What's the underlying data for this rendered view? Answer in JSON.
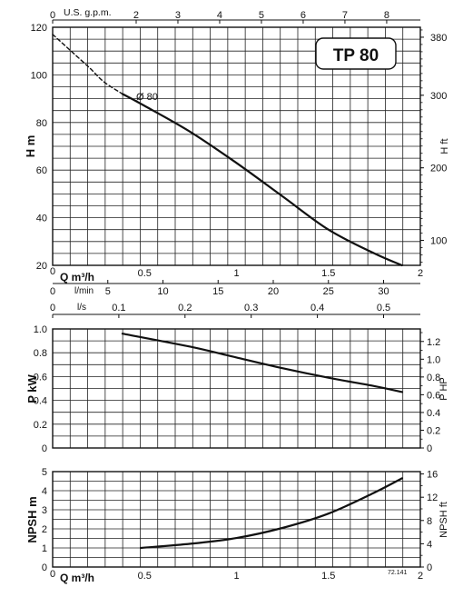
{
  "badge": {
    "text": "TP 80"
  },
  "chart_data": [
    {
      "id": "head",
      "type": "line",
      "title": "",
      "xlabel": "Q m³/h",
      "ylabel": "H m",
      "y2label": "H ft",
      "xlim": [
        0,
        2
      ],
      "ylim": [
        20,
        120
      ],
      "grid": true,
      "x_ticks": [
        "0",
        "0.5",
        "1",
        "1.5",
        "2"
      ],
      "y_ticks": [
        "20",
        "40",
        "60",
        "80",
        "100",
        "120"
      ],
      "y2_ticks": [
        "100",
        "200",
        "300",
        "380"
      ],
      "top_axis": {
        "label": "U.S. g.p.m.",
        "ticks": [
          "0",
          "2",
          "3",
          "4",
          "5",
          "6",
          "7",
          "8"
        ]
      },
      "lpm_axis": {
        "label": "l/min",
        "ticks": [
          "5",
          "10",
          "15",
          "20",
          "25",
          "30"
        ]
      },
      "ls_axis": {
        "label": "l/s",
        "ticks": [
          "0",
          "0.1",
          "0.2",
          "0.3",
          "0.4",
          "0.5"
        ]
      },
      "annotation": "Ø 80",
      "series": [
        {
          "dashed": true,
          "x": [
            0.0,
            0.1,
            0.2,
            0.28,
            0.38
          ],
          "y": [
            117,
            110,
            103,
            97,
            92
          ]
        },
        {
          "dashed": false,
          "x": [
            0.38,
            0.5,
            0.75,
            1.0,
            1.25,
            1.5,
            1.75,
            1.9
          ],
          "y": [
            92,
            87,
            76,
            63,
            49,
            35,
            25,
            20
          ]
        }
      ]
    },
    {
      "id": "power",
      "type": "line",
      "title": "",
      "xlabel": "",
      "ylabel": "P kW",
      "y2label": "P HP",
      "xlim": [
        0,
        2
      ],
      "ylim": [
        0,
        1.0
      ],
      "grid": true,
      "y_ticks": [
        "0",
        "0.2",
        "0.4",
        "0.6",
        "0.8",
        "1.0"
      ],
      "y2_ticks": [
        "0",
        "0.2",
        "0.4",
        "0.6",
        "0.8",
        "1.0",
        "1.2"
      ],
      "series": [
        {
          "dashed": false,
          "x": [
            0.38,
            0.75,
            1.0,
            1.25,
            1.5,
            1.75,
            1.9
          ],
          "y": [
            0.96,
            0.85,
            0.76,
            0.67,
            0.59,
            0.52,
            0.47
          ]
        }
      ]
    },
    {
      "id": "npsh",
      "type": "line",
      "title": "",
      "xlabel": "Q m³/h",
      "ylabel": "NPSH m",
      "y2label": "NPSH ft",
      "xlim": [
        0,
        2
      ],
      "ylim": [
        0,
        5
      ],
      "grid": true,
      "x_ticks": [
        "0",
        "0.5",
        "1",
        "1.5",
        "2"
      ],
      "y_ticks": [
        "0",
        "1",
        "2",
        "3",
        "4",
        "5"
      ],
      "y2_ticks": [
        "0",
        "4",
        "8",
        "12",
        "16"
      ],
      "note": "72.141",
      "series": [
        {
          "dashed": false,
          "x": [
            0.48,
            0.75,
            1.0,
            1.25,
            1.5,
            1.75,
            1.9
          ],
          "y": [
            1.0,
            1.22,
            1.52,
            2.05,
            2.8,
            3.9,
            4.65
          ]
        }
      ]
    }
  ]
}
